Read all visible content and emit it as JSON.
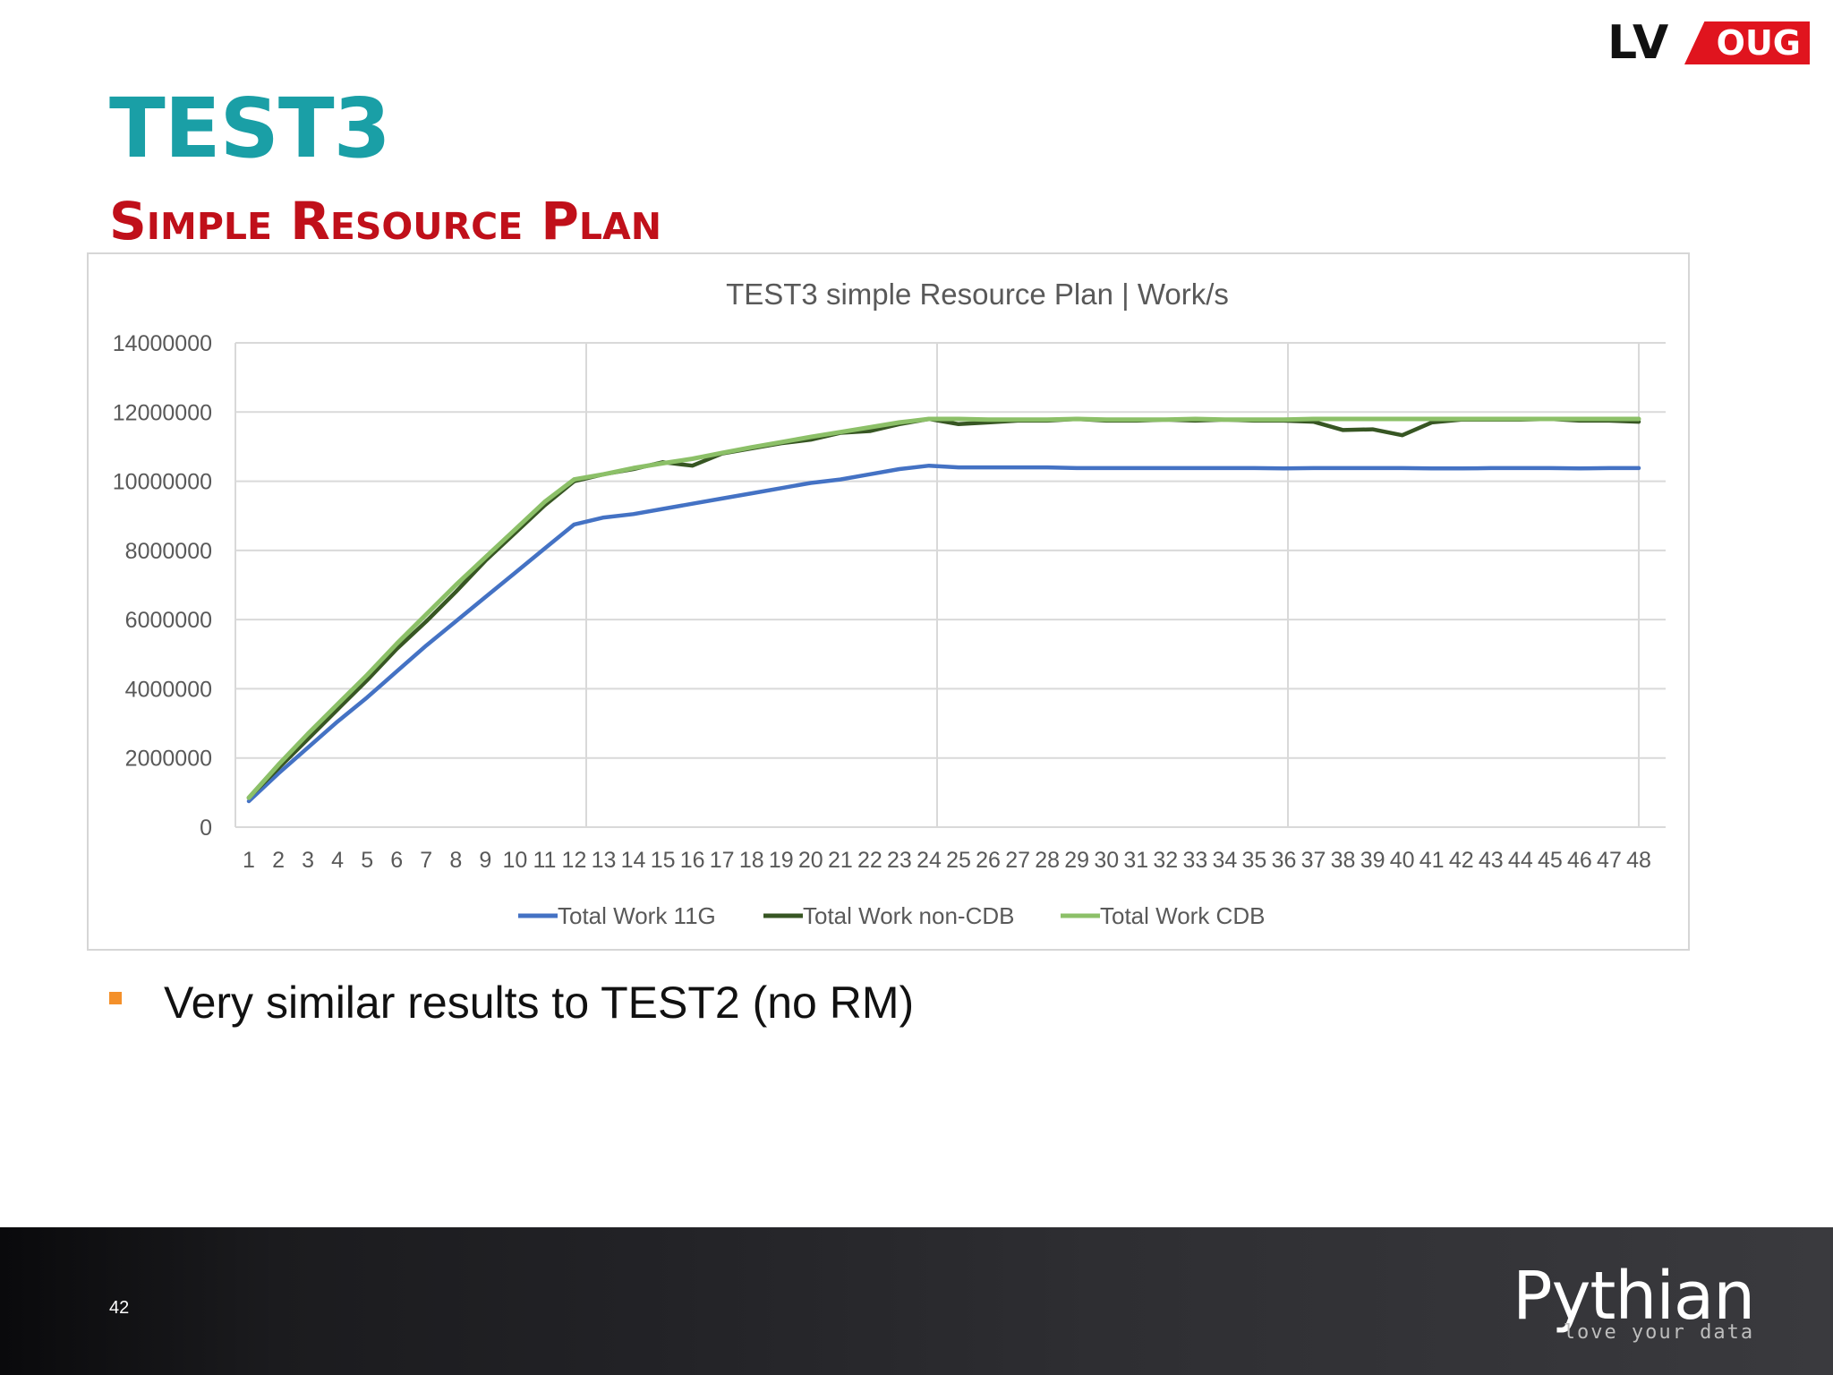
{
  "slide": {
    "title": "TEST3",
    "subtitle": "Simple Resource Plan",
    "bullet": "Very similar results to TEST2 (no RM)",
    "page_number": "42"
  },
  "logo": {
    "lv": "LV",
    "oug": "OUG"
  },
  "footer": {
    "brand": "Pythian",
    "tagline": "love your data"
  },
  "colors": {
    "title": "#1a9fa6",
    "subtitle": "#c0101a",
    "bullet": "#f4902a",
    "series_11g": "#4472c4",
    "series_noncdb": "#375623",
    "series_cdb": "#8cc068"
  },
  "chart_data": {
    "type": "line",
    "title": "TEST3 simple Resource Plan | Work/s",
    "xlabel": "",
    "ylabel": "",
    "ylim": [
      0,
      14000000
    ],
    "yticks": [
      0,
      2000000,
      4000000,
      6000000,
      8000000,
      10000000,
      12000000,
      14000000
    ],
    "grid": "on",
    "legend": "bottom",
    "categories": [
      "1",
      "2",
      "3",
      "4",
      "5",
      "6",
      "7",
      "8",
      "9",
      "10",
      "11",
      "12",
      "13",
      "14",
      "15",
      "16",
      "17",
      "18",
      "19",
      "20",
      "21",
      "22",
      "23",
      "24",
      "25",
      "26",
      "27",
      "28",
      "29",
      "30",
      "31",
      "32",
      "33",
      "34",
      "35",
      "36",
      "37",
      "38",
      "39",
      "40",
      "41",
      "42",
      "43",
      "44",
      "45",
      "46",
      "47",
      "48"
    ],
    "series": [
      {
        "name": "Total Work 11G",
        "color": "#4472c4",
        "values": [
          750000,
          1550000,
          2300000,
          3050000,
          3750000,
          4500000,
          5250000,
          5950000,
          6650000,
          7350000,
          8050000,
          8750000,
          8950000,
          9050000,
          9200000,
          9350000,
          9500000,
          9650000,
          9800000,
          9950000,
          10050000,
          10200000,
          10350000,
          10450000,
          10400000,
          10400000,
          10400000,
          10400000,
          10380000,
          10380000,
          10380000,
          10380000,
          10380000,
          10380000,
          10380000,
          10370000,
          10380000,
          10380000,
          10380000,
          10380000,
          10370000,
          10370000,
          10380000,
          10380000,
          10380000,
          10370000,
          10380000,
          10380000
        ]
      },
      {
        "name": "Total Work non-CDB",
        "color": "#375623",
        "values": [
          850000,
          1700000,
          2550000,
          3400000,
          4250000,
          5150000,
          5950000,
          6800000,
          7700000,
          8500000,
          9300000,
          10000000,
          10200000,
          10350000,
          10550000,
          10450000,
          10800000,
          10950000,
          11100000,
          11200000,
          11400000,
          11450000,
          11650000,
          11800000,
          11650000,
          11700000,
          11750000,
          11750000,
          11800000,
          11750000,
          11750000,
          11780000,
          11750000,
          11780000,
          11750000,
          11750000,
          11720000,
          11480000,
          11500000,
          11330000,
          11700000,
          11780000,
          11780000,
          11780000,
          11800000,
          11750000,
          11750000,
          11720000
        ]
      },
      {
        "name": "Total Work CDB",
        "color": "#8cc068",
        "values": [
          850000,
          1800000,
          2700000,
          3550000,
          4400000,
          5300000,
          6150000,
          7000000,
          7800000,
          8600000,
          9400000,
          10050000,
          10200000,
          10380000,
          10520000,
          10650000,
          10820000,
          10980000,
          11130000,
          11280000,
          11420000,
          11560000,
          11700000,
          11800000,
          11800000,
          11780000,
          11780000,
          11780000,
          11800000,
          11780000,
          11780000,
          11780000,
          11800000,
          11780000,
          11780000,
          11780000,
          11800000,
          11800000,
          11800000,
          11800000,
          11800000,
          11800000,
          11800000,
          11800000,
          11800000,
          11800000,
          11800000,
          11800000
        ]
      }
    ]
  }
}
